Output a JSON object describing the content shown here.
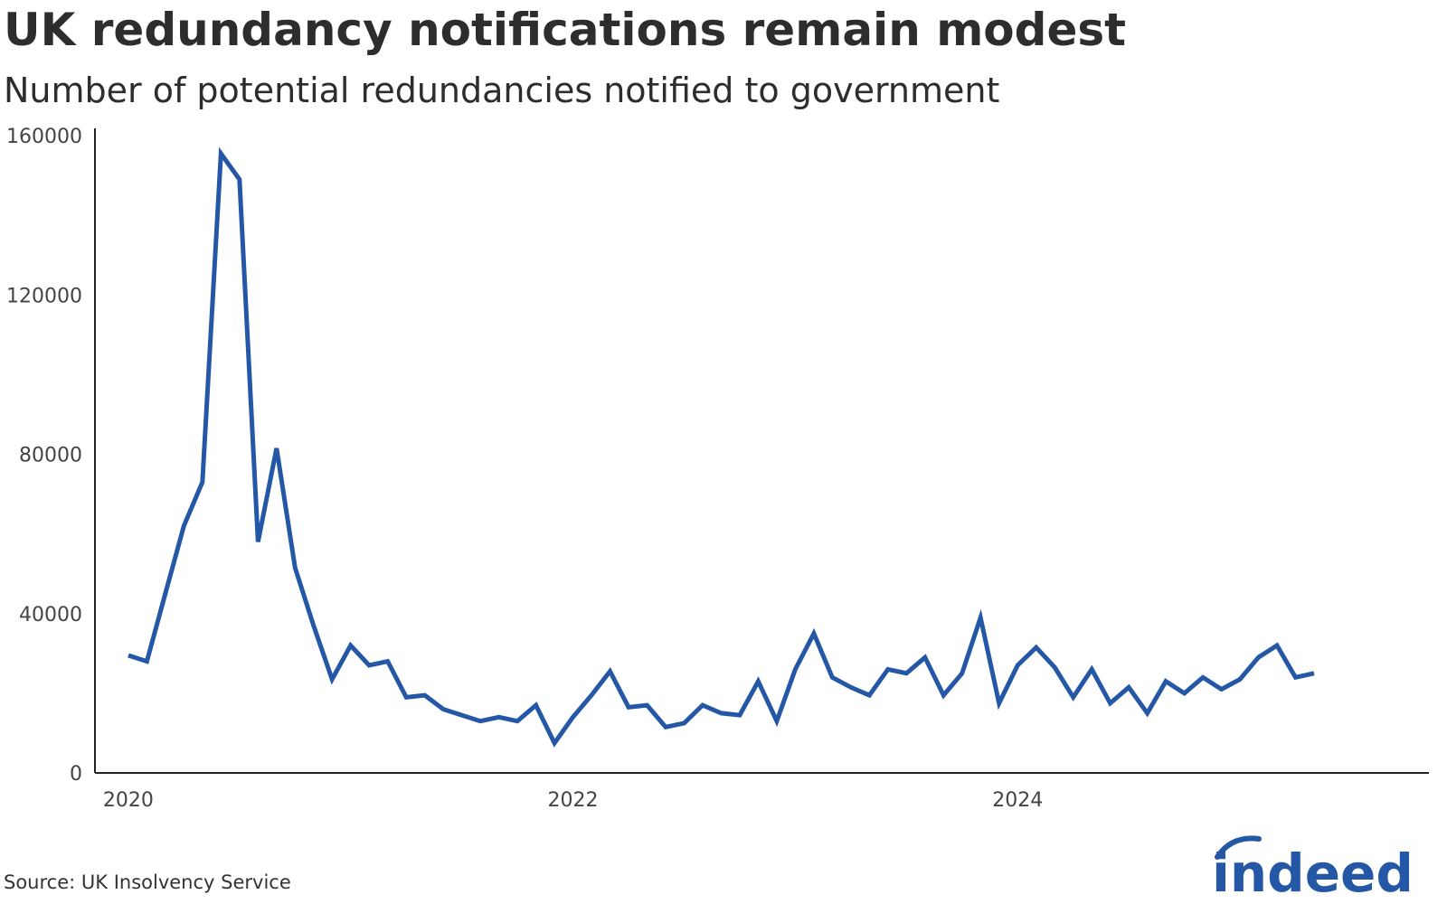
{
  "header": {
    "title": "UK redundancy notifications remain modest",
    "subtitle": "Number of potential redundancies notified to government"
  },
  "footer": {
    "source": "Source: UK Insolvency Service",
    "logo_text": "indeed",
    "logo_color": "#2557a7"
  },
  "chart_data": {
    "type": "line",
    "title": "UK redundancy notifications remain modest",
    "subtitle": "Number of potential redundancies notified to government",
    "xlabel": "",
    "ylabel": "",
    "ylim": [
      0,
      160000
    ],
    "xlim": [
      2019.85,
      2025.85
    ],
    "yticks": [
      0,
      40000,
      80000,
      120000,
      160000
    ],
    "ytick_labels": [
      "0",
      "40000",
      "80000",
      "120000",
      "160000"
    ],
    "xticks": [
      2020,
      2022,
      2024
    ],
    "xtick_labels": [
      "2020",
      "2022",
      "2024"
    ],
    "grid": false,
    "legend": "none",
    "series": [
      {
        "name": "Potential redundancies notified",
        "color": "#2557a7",
        "start_year": 2020,
        "points_per_year": 12,
        "values": [
          29500,
          28000,
          45000,
          62000,
          73000,
          155500,
          149000,
          58000,
          81500,
          51500,
          37000,
          23500,
          32000,
          27000,
          28000,
          19000,
          19500,
          16000,
          14500,
          13000,
          14000,
          13000,
          17000,
          7500,
          14000,
          19500,
          25500,
          16500,
          17000,
          11500,
          12500,
          17000,
          15000,
          14500,
          23000,
          13000,
          26000,
          35000,
          24000,
          21500,
          19500,
          26000,
          25000,
          29000,
          19500,
          25000,
          39000,
          17500,
          27000,
          31500,
          26500,
          19000,
          26000,
          17500,
          21500,
          15000,
          23000,
          20000,
          24000,
          21000,
          23500,
          29000,
          32000,
          24000,
          25000
        ]
      }
    ]
  }
}
